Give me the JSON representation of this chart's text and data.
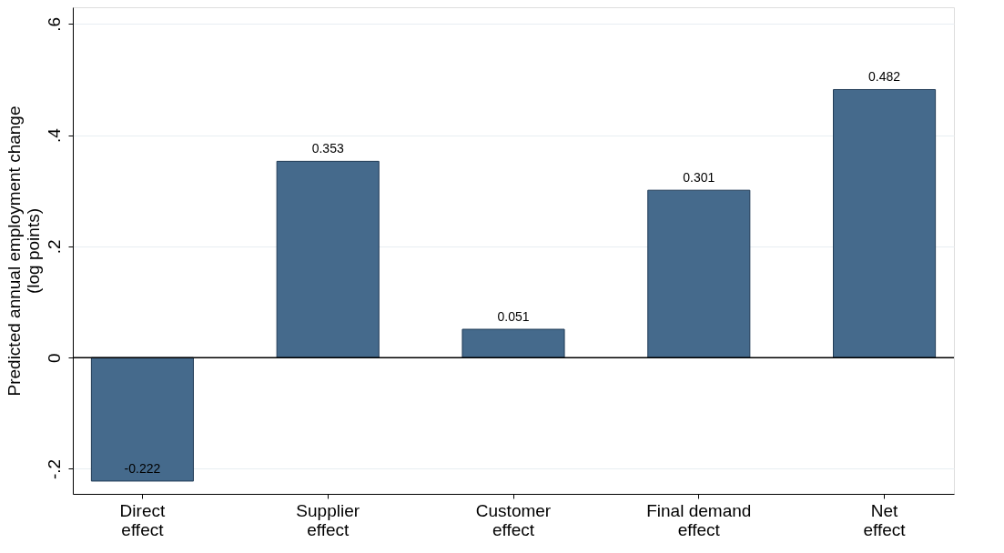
{
  "chart_data": {
    "type": "bar",
    "ylabel": "Predicted annual employment change\n(log points)",
    "categories": [
      "Direct\neffect",
      "Supplier\neffect",
      "Customer\neffect",
      "Final demand\neffect",
      "Net\neffect"
    ],
    "values": [
      -0.222,
      0.353,
      0.051,
      0.301,
      0.482
    ],
    "color": "#456a8c",
    "ylim": [
      -0.245,
      0.63
    ],
    "yticks": [
      {
        "value": -0.2,
        "label": "-.2"
      },
      {
        "value": 0,
        "label": "0"
      },
      {
        "value": 0.2,
        "label": ".2"
      },
      {
        "value": 0.4,
        "label": ".4"
      },
      {
        "value": 0.6,
        "label": ".6"
      }
    ],
    "grid": "y",
    "data_labels": true,
    "ref_lines": [
      {
        "axis": "y",
        "value": 0
      }
    ]
  }
}
